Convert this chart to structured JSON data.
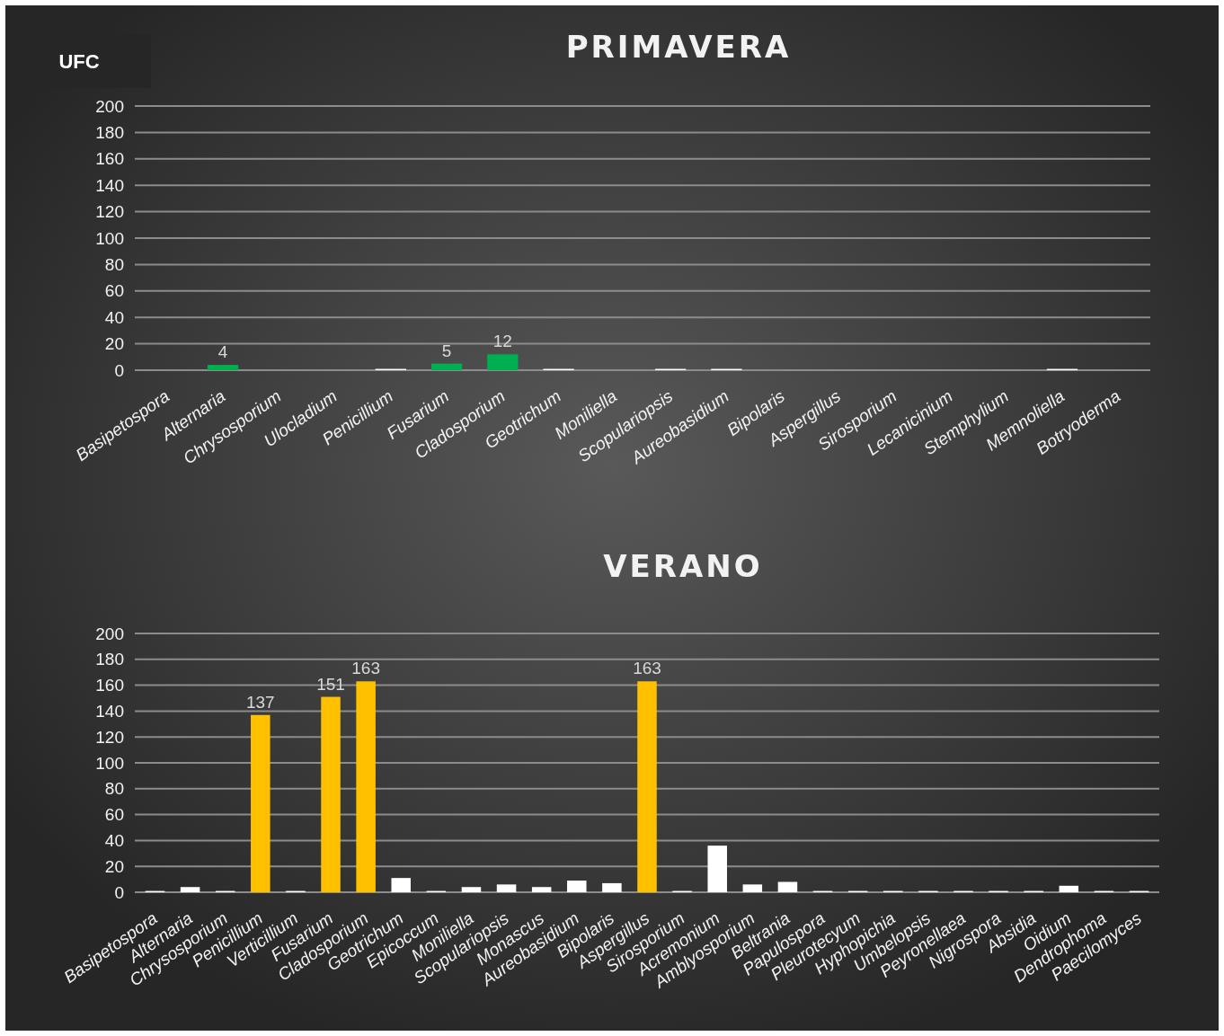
{
  "chart_data": [
    {
      "type": "bar",
      "title": "PRIMAVERA",
      "ylabel": "UFC",
      "categories": [
        "Basipetospora",
        "Alternaria",
        "Chrysosporium",
        "Ulocladium",
        "Penicillium",
        "Fusarium",
        "Cladosporium",
        "Geotrichum",
        "Moniliella",
        "Scopulariopsis",
        "Aureobasidium",
        "Bipolaris",
        "Aspergillus",
        "Sirosporium",
        "Lecanicinium",
        "Stemphylium",
        "Memnoliella",
        "Botryoderma"
      ],
      "values": [
        0,
        4,
        0,
        0,
        1,
        5,
        12,
        1,
        0,
        1,
        1,
        0,
        0,
        0,
        0,
        0,
        1,
        0
      ],
      "colors": [
        "#ffffff",
        "#00b050",
        "#ffffff",
        "#ffffff",
        "#ffffff",
        "#00b050",
        "#00b050",
        "#ffffff",
        "#ffffff",
        "#ffffff",
        "#ffffff",
        "#ffffff",
        "#ffffff",
        "#ffffff",
        "#ffffff",
        "#ffffff",
        "#ffffff",
        "#ffffff"
      ],
      "value_labels": [
        null,
        "4",
        null,
        null,
        null,
        "5",
        "12",
        null,
        null,
        null,
        null,
        null,
        null,
        null,
        null,
        null,
        null,
        null
      ],
      "ylim": [
        0,
        200
      ],
      "yticks": [
        0,
        20,
        40,
        60,
        80,
        100,
        120,
        140,
        160,
        180,
        200
      ],
      "grid": "y"
    },
    {
      "type": "bar",
      "title": "VERANO",
      "categories": [
        "Basipetospora",
        "Alternaria",
        "Chrysosporium",
        "Penicillium",
        "Verticillium",
        "Fusarium",
        "Cladosporium",
        "Geotrichum",
        "Epicoccum",
        "Moniliella",
        "Scopulariopsis",
        "Monascus",
        "Aureobasidium",
        "Bipolaris",
        "Aspergillus",
        "Sirosporium",
        "Acremonium",
        "Amblyosporium",
        "Beltrania",
        "Papulospora",
        "Pleurotecyum",
        "Hyphopichia",
        "Umbelopsis",
        "Peyronellaea",
        "Nigrospora",
        "Absidia",
        "Oidium",
        "Dendrophoma",
        "Paecilomyces"
      ],
      "values": [
        1,
        4,
        1,
        137,
        1,
        151,
        163,
        11,
        1,
        4,
        6,
        4,
        9,
        7,
        163,
        1,
        36,
        6,
        8,
        1,
        1,
        1,
        1,
        1,
        1,
        1,
        5,
        1,
        1
      ],
      "colors": [
        "#ffffff",
        "#ffffff",
        "#ffffff",
        "#ffc000",
        "#ffffff",
        "#ffc000",
        "#ffc000",
        "#ffffff",
        "#ffffff",
        "#ffffff",
        "#ffffff",
        "#ffffff",
        "#ffffff",
        "#ffffff",
        "#ffc000",
        "#ffffff",
        "#ffffff",
        "#ffffff",
        "#ffffff",
        "#ffffff",
        "#ffffff",
        "#ffffff",
        "#ffffff",
        "#ffffff",
        "#ffffff",
        "#ffffff",
        "#ffffff",
        "#ffffff",
        "#ffffff"
      ],
      "value_labels": [
        null,
        null,
        null,
        "137",
        null,
        "151",
        "163",
        null,
        null,
        null,
        null,
        null,
        null,
        null,
        "163",
        null,
        null,
        null,
        null,
        null,
        null,
        null,
        null,
        null,
        null,
        null,
        null,
        null,
        null
      ],
      "ylim": [
        0,
        200
      ],
      "yticks": [
        0,
        20,
        40,
        60,
        80,
        100,
        120,
        140,
        160,
        180,
        200
      ],
      "grid": "y"
    }
  ]
}
